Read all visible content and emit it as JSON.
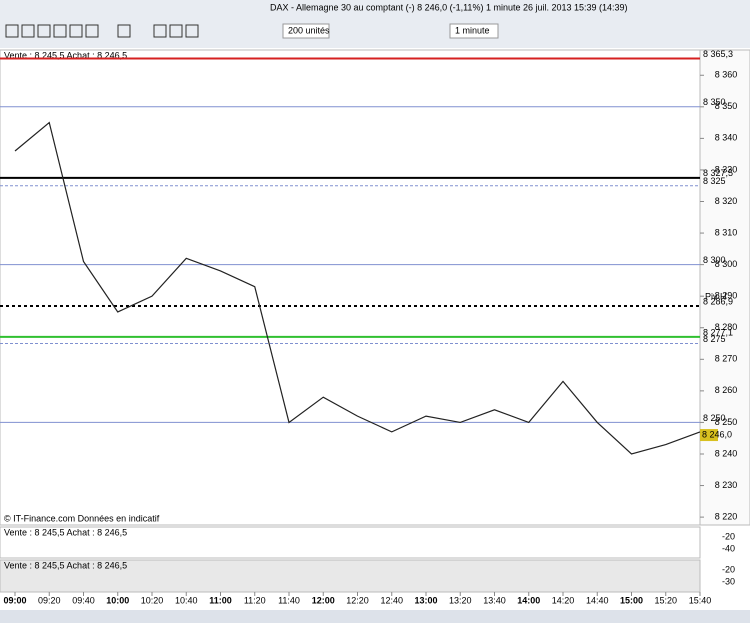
{
  "toolbar": {
    "title": "DAX - Allemagne 30 au comptant (-)   8 246,0 (-1,11%)   1 minute  26 juil. 2013 15:39 (14:39)",
    "units": "200 unités",
    "interval": "1 minute"
  },
  "chart_data": {
    "type": "line",
    "quote": "Vente : 8 245,5 Achat : 8 246,5",
    "watermark": "© IT-Finance.com  Données en indicatif",
    "categories": [
      "09:00",
      "09:20",
      "09:40",
      "10:00",
      "10:20",
      "10:40",
      "11:00",
      "11:20",
      "11:40",
      "12:00",
      "12:20",
      "12:40",
      "13:00",
      "13:20",
      "13:40",
      "14:00",
      "14:20",
      "14:40",
      "15:00",
      "15:20",
      "15:40"
    ],
    "series": [
      {
        "name": "DAX",
        "color": "#222222",
        "values": [
          8336,
          8345,
          8301,
          8285,
          8290,
          8302,
          8298,
          8293,
          8250,
          8258,
          8252,
          8247,
          8252,
          8250,
          8254,
          8250,
          8263,
          8250,
          8240,
          8243,
          8247
        ]
      }
    ],
    "ylim": [
      8217.5,
      8368
    ],
    "yticks": [
      {
        "value": 8220,
        "label": "8 220"
      },
      {
        "value": 8230,
        "label": "8 230"
      },
      {
        "value": 8240,
        "label": "8 240"
      },
      {
        "value": 8250,
        "label": "8 250"
      },
      {
        "value": 8260,
        "label": "8 260"
      },
      {
        "value": 8270,
        "label": "8 270"
      },
      {
        "value": 8280,
        "label": "8 280"
      },
      {
        "value": 8290,
        "label": "8 290"
      },
      {
        "value": 8300,
        "label": "8 300"
      },
      {
        "value": 8310,
        "label": "8 310"
      },
      {
        "value": 8320,
        "label": "8 320"
      },
      {
        "value": 8330,
        "label": "8 330"
      },
      {
        "value": 8340,
        "label": "8 340"
      },
      {
        "value": 8350,
        "label": "8 350"
      },
      {
        "value": 8360,
        "label": "8 360"
      }
    ],
    "levels": [
      {
        "value": 8365.3,
        "label": "8 365,3",
        "color": "#d62020",
        "width": 2,
        "dash": ""
      },
      {
        "value": 8350,
        "label": "8 350",
        "color": "#8090d0",
        "width": 1,
        "dash": ""
      },
      {
        "value": 8327.5,
        "label": "8 327,5",
        "color": "#000000",
        "width": 2,
        "dash": ""
      },
      {
        "value": 8325,
        "label": "8 325",
        "color": "#8090d0",
        "width": 1,
        "dash": "3 2"
      },
      {
        "value": 8300,
        "label": "8 300",
        "color": "#8090d0",
        "width": 1,
        "dash": ""
      },
      {
        "value": 8286.9,
        "label": "8 286,9",
        "color": "#000000",
        "width": 2,
        "dash": "3 3"
      },
      {
        "value": 8277.1,
        "label": "8 277,1",
        "color": "#30c030",
        "width": 2,
        "dash": ""
      },
      {
        "value": 8275,
        "label": "8 275",
        "color": "#8090d0",
        "width": 1,
        "dash": "3 2"
      },
      {
        "value": 8250,
        "label": "8 250",
        "color": "#8090d0",
        "width": 1,
        "dash": ""
      }
    ],
    "pivot_label": "Piv H",
    "last_price": {
      "value": 8246,
      "label": "8 246,0"
    },
    "panels": [
      {
        "quote": "Vente : 8 245,5 Achat : 8 246,5",
        "ticks": [
          "-20",
          "-40"
        ]
      },
      {
        "quote": "Vente : 8 245,5 Achat : 8 246,5",
        "ticks": [
          "-20",
          "-30"
        ]
      }
    ]
  }
}
